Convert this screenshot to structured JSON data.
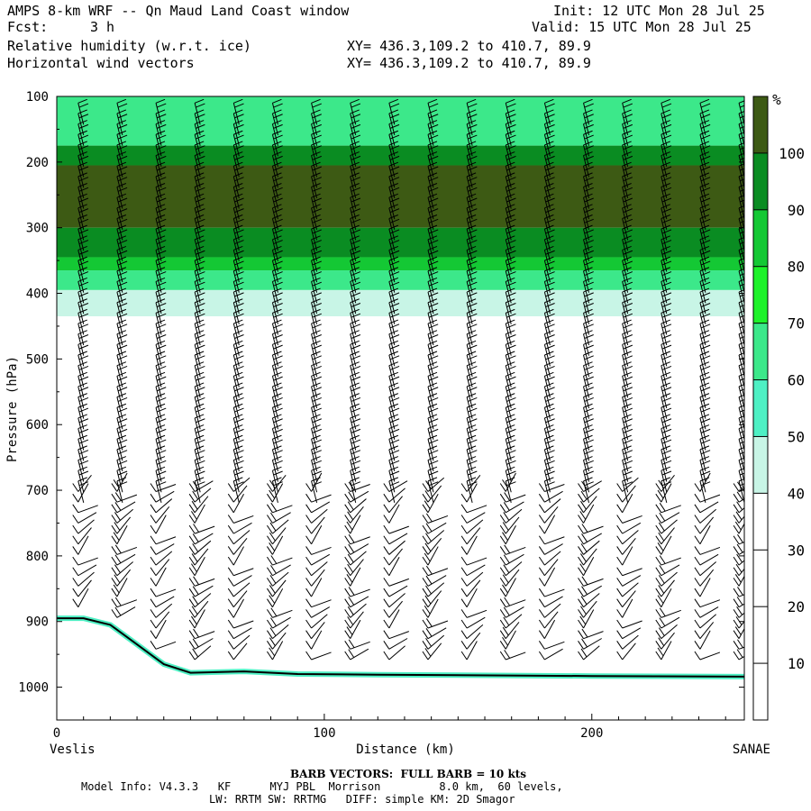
{
  "header": {
    "title": "AMPS 8-km WRF -- Qn Maud Land Coast window",
    "fcst_label": "Fcst:",
    "fcst_value": "3 h",
    "field1": "Relative humidity (w.r.t. ice)",
    "field2": "Horizontal wind vectors",
    "xy1": "XY= 436.3,109.2 to 410.7, 89.9",
    "xy2": "XY= 436.3,109.2 to 410.7, 89.9",
    "init": "Init: 12 UTC Mon 28 Jul 25",
    "valid": "Valid: 15 UTC Mon 28 Jul 25"
  },
  "footer": {
    "barb_note": "BARB VECTORS:  FULL BARB = 10 kts",
    "model_line1": "Model Info: V4.3.3   KF      MYJ PBL  Morrison         8.0 km,  60 levels,",
    "model_line2": "LW: RRTM SW: RRTMG   DIFF: simple KM: 2D Smagor"
  },
  "chart_data": {
    "type": "heatmap",
    "title": "Relative humidity (w.r.t. ice) cross-section",
    "xlabel": "Distance (km)",
    "ylabel": "Pressure (hPa)",
    "x_left_label": "Veslis",
    "x_right_label": "SANAE",
    "xlim": [
      0,
      257
    ],
    "ylim": [
      1050,
      100
    ],
    "x_ticks": [
      0,
      100,
      200
    ],
    "y_ticks": [
      100,
      200,
      300,
      400,
      500,
      600,
      700,
      800,
      900,
      1000
    ],
    "colorbar_unit": "%",
    "colorbar_levels": [
      10,
      20,
      30,
      40,
      50,
      60,
      70,
      80,
      90,
      100
    ],
    "colorbar_colors": [
      "#ffffff",
      "#ffffff",
      "#ffffff",
      "#c8f5e6",
      "#4ef0c4",
      "#3ce88a",
      "#1ef22a",
      "#14c834",
      "#0a8c22",
      "#3d5a14"
    ],
    "rh_layers": [
      {
        "p_top": 100,
        "p_bot": 175,
        "rh": 60
      },
      {
        "p_top": 175,
        "p_bot": 205,
        "rh": 90
      },
      {
        "p_top": 205,
        "p_bot": 300,
        "rh": 100
      },
      {
        "p_top": 300,
        "p_bot": 345,
        "rh": 90
      },
      {
        "p_top": 345,
        "p_bot": 365,
        "rh": 80
      },
      {
        "p_top": 365,
        "p_bot": 395,
        "rh": 60
      },
      {
        "p_top": 395,
        "p_bot": 435,
        "rh": 40
      },
      {
        "p_top": 435,
        "p_bot": 560,
        "rh": 30
      }
    ],
    "terrain_pressure": [
      [
        0,
        895
      ],
      [
        10,
        895
      ],
      [
        20,
        905
      ],
      [
        30,
        935
      ],
      [
        40,
        965
      ],
      [
        50,
        978
      ],
      [
        70,
        976
      ],
      [
        90,
        980
      ],
      [
        120,
        981
      ],
      [
        200,
        983
      ],
      [
        257,
        984
      ]
    ],
    "barb_note": "FULL BARB = 10 kts"
  }
}
